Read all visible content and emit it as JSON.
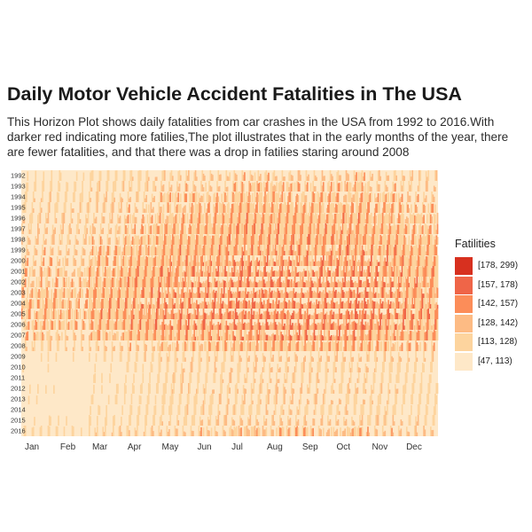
{
  "title": "Daily Motor Vehicle Accident Fatalities in The USA",
  "subtitle": "This Horizon Plot shows daily fatalities from car crashes in the USA from 1992 to 2016.With darker red indicating more fatilies,The plot illustrates that in the early months of the year, there are fewer fatalities, and that there was a drop in fatilies staring around 2008",
  "chart_data": {
    "type": "heatmap",
    "x_tick_labels": [
      "Jan",
      "Feb",
      "Mar",
      "Apr",
      "May",
      "Jun",
      "Jul",
      "Aug",
      "Sep",
      "Oct",
      "Nov",
      "Dec"
    ],
    "y_tick_labels": [
      "1992",
      "1993",
      "1994",
      "1995",
      "1996",
      "1997",
      "1998",
      "1999",
      "2000",
      "2001",
      "2002",
      "2003",
      "2004",
      "2005",
      "2006",
      "2007",
      "2008",
      "2009",
      "2010",
      "2011",
      "2012",
      "2013",
      "2014",
      "2015",
      "2016"
    ],
    "x_range": [
      1,
      365
    ],
    "legend_title": "Fatilities",
    "legend_position": "right",
    "grid": false,
    "bins": [
      {
        "label": "[178, 299)",
        "color": "#d7301f"
      },
      {
        "label": "[157, 178)",
        "color": "#ef6548"
      },
      {
        "label": "[142, 157)",
        "color": "#fc8d59"
      },
      {
        "label": "[128, 142)",
        "color": "#fdbb84"
      },
      {
        "label": "[113, 128)",
        "color": "#fdd49e"
      },
      {
        "label": "[47, 113)",
        "color": "#fee8c8"
      }
    ],
    "approx_annual_level": {
      "1992": 108,
      "1993": 112,
      "1994": 116,
      "1995": 119,
      "1996": 122,
      "1997": 124,
      "1998": 125,
      "1999": 128,
      "2000": 131,
      "2001": 133,
      "2002": 136,
      "2003": 137,
      "2004": 138,
      "2005": 138,
      "2006": 136,
      "2007": 131,
      "2008": 119,
      "2009": 104,
      "2010": 100,
      "2011": 98,
      "2012": 102,
      "2013": 100,
      "2014": 99,
      "2015": 105,
      "2016": 112
    },
    "approx_monthly_offset": [
      -14,
      -16,
      -9,
      -4,
      2,
      4,
      7,
      8,
      6,
      8,
      3,
      -2
    ]
  }
}
